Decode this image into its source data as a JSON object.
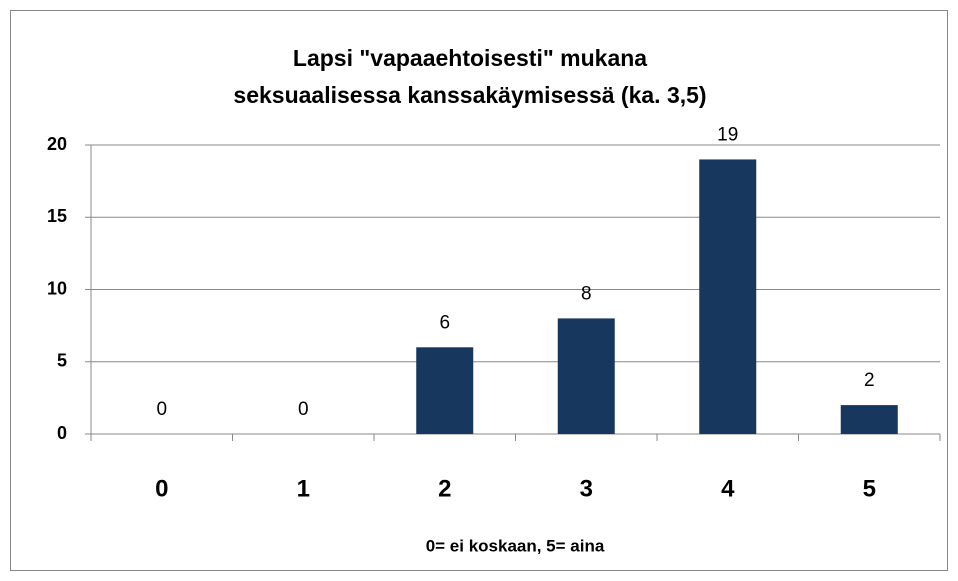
{
  "chart_data": {
    "type": "bar",
    "title": "Lapsi \"vapaaehtoisesti\" mukana seksuaalisessa kanssakäymisessä (ka. 3,5)",
    "x_label": "0= ei koskaan, 5= aina",
    "categories": [
      "0",
      "1",
      "2",
      "3",
      "4",
      "5"
    ],
    "values": [
      0,
      0,
      6,
      8,
      19,
      2
    ],
    "color": "#17375e",
    "ylim": [
      0,
      20
    ],
    "yticks": [
      0,
      5,
      10,
      15,
      20
    ],
    "grid": true
  }
}
